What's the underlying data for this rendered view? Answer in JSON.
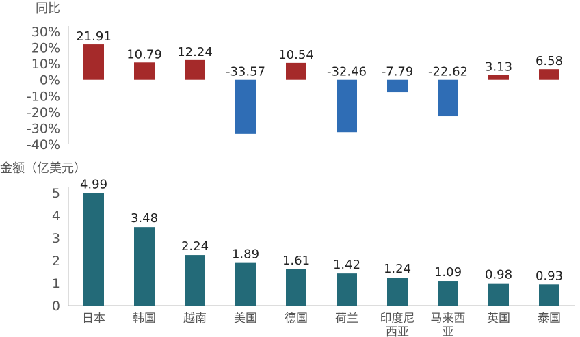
{
  "chart_data": [
    {
      "type": "bar",
      "title": "",
      "ylabel": "同比",
      "ylim": [
        -40,
        30
      ],
      "yticks": [
        "30%",
        "20%",
        "10%",
        "0%",
        "-10%",
        "-20%",
        "-30%",
        "-40%"
      ],
      "categories": [
        "日本",
        "韩国",
        "越南",
        "美国",
        "德国",
        "荷兰",
        "印度尼西亚",
        "马来西亚",
        "英国",
        "泰国"
      ],
      "values": [
        21.91,
        10.79,
        12.24,
        -33.57,
        10.54,
        -32.46,
        -7.79,
        -22.62,
        3.13,
        6.58
      ],
      "value_labels": [
        "21.91",
        "10.79",
        "12.24",
        "-33.57",
        "10.54",
        "-32.46",
        "-7.79",
        "-22.62",
        "3.13",
        "6.58"
      ],
      "positive_color": "#A52A2A",
      "negative_color": "#2F6DB5"
    },
    {
      "type": "bar",
      "title": "",
      "ylabel": "金额（亿美元）",
      "ylim": [
        0,
        5
      ],
      "yticks": [
        "5",
        "4",
        "3",
        "2",
        "1",
        "0"
      ],
      "categories": [
        "日本",
        "韩国",
        "越南",
        "美国",
        "德国",
        "荷兰",
        "印度尼西亚",
        "马来西亚",
        "英国",
        "泰国"
      ],
      "category_lines": [
        [
          "日本"
        ],
        [
          "韩国"
        ],
        [
          "越南"
        ],
        [
          "美国"
        ],
        [
          "德国"
        ],
        [
          "荷兰"
        ],
        [
          "印度尼",
          "西亚"
        ],
        [
          "马来西",
          "亚"
        ],
        [
          "英国"
        ],
        [
          "泰国"
        ]
      ],
      "values": [
        4.99,
        3.48,
        2.24,
        1.89,
        1.61,
        1.42,
        1.24,
        1.09,
        0.98,
        0.93
      ],
      "value_labels": [
        "4.99",
        "3.48",
        "2.24",
        "1.89",
        "1.61",
        "1.42",
        "1.24",
        "1.09",
        "0.98",
        "0.93"
      ],
      "color": "#236A78"
    }
  ]
}
